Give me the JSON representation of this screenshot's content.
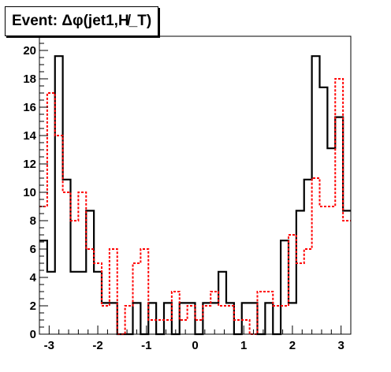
{
  "chart_data": {
    "type": "histogram",
    "title": "Event: Δφ(jet1,H̸_T)",
    "xlabel": "",
    "ylabel": "",
    "xlim": [
      -3.2,
      3.2
    ],
    "ylim": [
      0,
      21
    ],
    "bin_width": 0.16,
    "x_bin_lower_edges": [
      -3.2,
      -3.04,
      -2.88,
      -2.72,
      -2.56,
      -2.4,
      -2.24,
      -2.08,
      -1.92,
      -1.76,
      -1.6,
      -1.44,
      -1.28,
      -1.12,
      -0.96,
      -0.8,
      -0.64,
      -0.48,
      -0.32,
      -0.16,
      0.0,
      0.16,
      0.32,
      0.48,
      0.64,
      0.8,
      0.96,
      1.12,
      1.28,
      1.44,
      1.6,
      1.76,
      1.92,
      2.08,
      2.24,
      2.4,
      2.56,
      2.72,
      2.88,
      3.04
    ],
    "xticks": [
      "-3",
      "-2",
      "-1",
      "0",
      "1",
      "2",
      "3"
    ],
    "yticks": [
      "0",
      "2",
      "4",
      "6",
      "8",
      "10",
      "12",
      "14",
      "16",
      "18",
      "20"
    ],
    "series": [
      {
        "style": "solid black",
        "color": "#000000",
        "values": [
          6.6,
          4.4,
          19.6,
          10.9,
          4.4,
          4.4,
          8.7,
          4.4,
          2.2,
          2.2,
          0,
          0,
          2.2,
          0,
          2.2,
          0,
          2.2,
          0,
          2.2,
          2.2,
          0,
          2.2,
          2.2,
          4.4,
          2.2,
          0,
          2.2,
          2.2,
          0,
          2.2,
          0,
          6.6,
          2.2,
          8.7,
          10.9,
          19.6,
          17.4,
          13.1,
          15.3,
          8.7
        ]
      },
      {
        "style": "dashed red",
        "color": "#ff0000",
        "values": [
          9,
          17,
          14,
          10,
          8,
          10,
          6,
          5,
          2,
          6,
          0,
          2,
          5,
          6,
          1,
          1,
          1,
          3,
          1,
          2,
          1,
          2,
          3,
          2,
          2,
          1,
          1,
          0,
          3,
          3,
          2,
          2,
          7,
          5,
          6,
          11,
          9,
          9,
          18,
          8
        ]
      }
    ]
  }
}
